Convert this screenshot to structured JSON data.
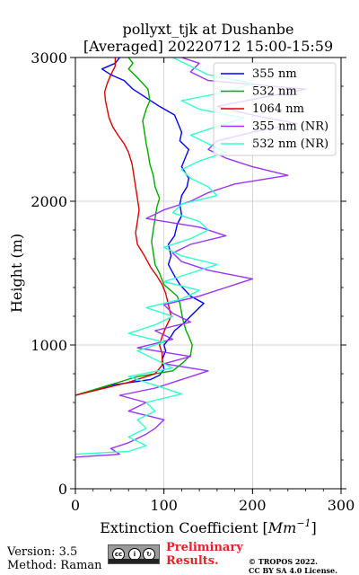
{
  "chart_data": {
    "type": "line",
    "title_line1": "pollyxt_tjk at Dushanbe",
    "title_line2": "[Averaged] 20220712 15:00-15:59",
    "xlabel": "Extinction Coefficient [",
    "xlabel_unit": "Mm",
    "xlabel_exp": "−1",
    "xlabel_end": "]",
    "ylabel": "Height (m)",
    "xlim": [
      0,
      300
    ],
    "ylim": [
      0,
      3000
    ],
    "x_ticks": [
      0,
      100,
      200,
      300
    ],
    "y_ticks": [
      0,
      1000,
      2000,
      3000
    ],
    "grid": true,
    "legend_placement": "top-right",
    "series": [
      {
        "name": "355 nm",
        "color": "#0000ff",
        "points": [
          [
            0,
            650
          ],
          [
            40,
            720
          ],
          [
            85,
            760
          ],
          [
            95,
            790
          ],
          [
            100,
            830
          ],
          [
            98,
            900
          ],
          [
            102,
            960
          ],
          [
            100,
            1000
          ],
          [
            108,
            1060
          ],
          [
            112,
            1100
          ],
          [
            122,
            1150
          ],
          [
            130,
            1200
          ],
          [
            140,
            1260
          ],
          [
            145,
            1290
          ],
          [
            130,
            1340
          ],
          [
            118,
            1420
          ],
          [
            112,
            1480
          ],
          [
            105,
            1560
          ],
          [
            108,
            1620
          ],
          [
            105,
            1700
          ],
          [
            112,
            1760
          ],
          [
            115,
            1840
          ],
          [
            120,
            1900
          ],
          [
            118,
            1980
          ],
          [
            120,
            2040
          ],
          [
            126,
            2100
          ],
          [
            128,
            2160
          ],
          [
            120,
            2240
          ],
          [
            124,
            2300
          ],
          [
            128,
            2360
          ],
          [
            118,
            2420
          ],
          [
            120,
            2480
          ],
          [
            116,
            2540
          ],
          [
            112,
            2600
          ],
          [
            95,
            2660
          ],
          [
            80,
            2720
          ],
          [
            65,
            2780
          ],
          [
            55,
            2840
          ],
          [
            40,
            2880
          ],
          [
            30,
            2920
          ],
          [
            45,
            2960
          ],
          [
            50,
            3000
          ]
        ]
      },
      {
        "name": "532 nm",
        "color": "#00aa00",
        "points": [
          [
            0,
            650
          ],
          [
            70,
            780
          ],
          [
            110,
            820
          ],
          [
            122,
            880
          ],
          [
            130,
            930
          ],
          [
            132,
            1000
          ],
          [
            128,
            1060
          ],
          [
            125,
            1100
          ],
          [
            122,
            1160
          ],
          [
            120,
            1220
          ],
          [
            118,
            1290
          ],
          [
            115,
            1340
          ],
          [
            100,
            1420
          ],
          [
            95,
            1500
          ],
          [
            90,
            1560
          ],
          [
            88,
            1640
          ],
          [
            86,
            1720
          ],
          [
            88,
            1800
          ],
          [
            90,
            1880
          ],
          [
            92,
            1960
          ],
          [
            95,
            2020
          ],
          [
            90,
            2100
          ],
          [
            88,
            2180
          ],
          [
            84,
            2260
          ],
          [
            82,
            2340
          ],
          [
            80,
            2400
          ],
          [
            78,
            2480
          ],
          [
            76,
            2560
          ],
          [
            80,
            2640
          ],
          [
            84,
            2700
          ],
          [
            82,
            2780
          ],
          [
            70,
            2860
          ],
          [
            60,
            2920
          ],
          [
            65,
            2960
          ],
          [
            60,
            3000
          ]
        ]
      },
      {
        "name": "1064 nm",
        "color": "#dd0000",
        "points": [
          [
            0,
            650
          ],
          [
            60,
            740
          ],
          [
            90,
            800
          ],
          [
            98,
            860
          ],
          [
            98,
            940
          ],
          [
            95,
            1000
          ],
          [
            98,
            1060
          ],
          [
            102,
            1120
          ],
          [
            108,
            1200
          ],
          [
            105,
            1280
          ],
          [
            102,
            1360
          ],
          [
            98,
            1420
          ],
          [
            92,
            1480
          ],
          [
            85,
            1540
          ],
          [
            78,
            1620
          ],
          [
            70,
            1700
          ],
          [
            68,
            1780
          ],
          [
            70,
            1860
          ],
          [
            72,
            1940
          ],
          [
            70,
            2020
          ],
          [
            68,
            2100
          ],
          [
            66,
            2180
          ],
          [
            64,
            2260
          ],
          [
            60,
            2340
          ],
          [
            55,
            2400
          ],
          [
            48,
            2460
          ],
          [
            42,
            2520
          ],
          [
            38,
            2580
          ],
          [
            36,
            2640
          ],
          [
            34,
            2700
          ],
          [
            33,
            2760
          ],
          [
            36,
            2820
          ],
          [
            40,
            2880
          ],
          [
            45,
            2940
          ],
          [
            45,
            3000
          ]
        ]
      },
      {
        "name": "355 nm (NR)",
        "color": "#9933ff",
        "points": [
          [
            0,
            220
          ],
          [
            50,
            240
          ],
          [
            40,
            280
          ],
          [
            60,
            320
          ],
          [
            80,
            380
          ],
          [
            90,
            420
          ],
          [
            100,
            480
          ],
          [
            60,
            540
          ],
          [
            80,
            600
          ],
          [
            50,
            650
          ],
          [
            90,
            700
          ],
          [
            120,
            760
          ],
          [
            150,
            820
          ],
          [
            100,
            870
          ],
          [
            130,
            920
          ],
          [
            70,
            980
          ],
          [
            110,
            1040
          ],
          [
            90,
            1100
          ],
          [
            130,
            1160
          ],
          [
            110,
            1220
          ],
          [
            100,
            1280
          ],
          [
            140,
            1340
          ],
          [
            170,
            1400
          ],
          [
            200,
            1460
          ],
          [
            150,
            1520
          ],
          [
            120,
            1580
          ],
          [
            110,
            1640
          ],
          [
            130,
            1700
          ],
          [
            170,
            1760
          ],
          [
            140,
            1820
          ],
          [
            80,
            1880
          ],
          [
            100,
            1940
          ],
          [
            130,
            2000
          ],
          [
            150,
            2060
          ],
          [
            180,
            2120
          ],
          [
            240,
            2180
          ],
          [
            200,
            2240
          ],
          [
            170,
            2300
          ],
          [
            150,
            2360
          ],
          [
            160,
            2420
          ],
          [
            200,
            2480
          ],
          [
            250,
            2540
          ],
          [
            200,
            2600
          ],
          [
            160,
            2660
          ],
          [
            210,
            2720
          ],
          [
            260,
            2780
          ],
          [
            150,
            2840
          ],
          [
            130,
            2900
          ],
          [
            140,
            2960
          ],
          [
            120,
            3000
          ]
        ]
      },
      {
        "name": "532 nm (NR)",
        "color": "#33ffcc",
        "points": [
          [
            0,
            240
          ],
          [
            60,
            260
          ],
          [
            80,
            300
          ],
          [
            60,
            360
          ],
          [
            80,
            420
          ],
          [
            70,
            480
          ],
          [
            90,
            540
          ],
          [
            80,
            600
          ],
          [
            120,
            660
          ],
          [
            90,
            720
          ],
          [
            60,
            780
          ],
          [
            110,
            840
          ],
          [
            90,
            900
          ],
          [
            70,
            960
          ],
          [
            100,
            1020
          ],
          [
            60,
            1080
          ],
          [
            90,
            1140
          ],
          [
            110,
            1200
          ],
          [
            80,
            1260
          ],
          [
            120,
            1320
          ],
          [
            140,
            1380
          ],
          [
            100,
            1440
          ],
          [
            130,
            1500
          ],
          [
            160,
            1560
          ],
          [
            120,
            1620
          ],
          [
            100,
            1680
          ],
          [
            130,
            1740
          ],
          [
            150,
            1800
          ],
          [
            140,
            1860
          ],
          [
            110,
            1920
          ],
          [
            120,
            1980
          ],
          [
            160,
            2040
          ],
          [
            150,
            2100
          ],
          [
            130,
            2160
          ],
          [
            120,
            2220
          ],
          [
            140,
            2280
          ],
          [
            170,
            2340
          ],
          [
            150,
            2400
          ],
          [
            130,
            2460
          ],
          [
            160,
            2520
          ],
          [
            190,
            2580
          ],
          [
            140,
            2640
          ],
          [
            120,
            2700
          ],
          [
            170,
            2760
          ],
          [
            200,
            2820
          ],
          [
            150,
            2880
          ],
          [
            130,
            2940
          ],
          [
            110,
            3000
          ]
        ]
      }
    ]
  },
  "footer": {
    "version": "Version: 3.5",
    "method": "Method: Raman",
    "prelim_line1": "Preliminary",
    "prelim_line2": "Results.",
    "copyright_line1": "© TROPOS 2022.",
    "copyright_line2": "CC BY SA 4.0 License."
  }
}
